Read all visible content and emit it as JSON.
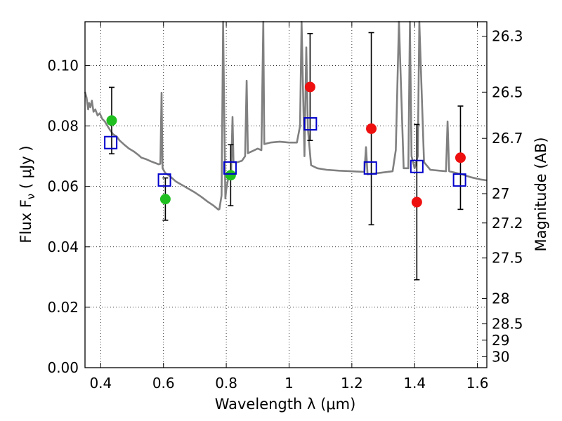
{
  "chart_data": {
    "type": "scatter",
    "xlabel": "Wavelength  λ (μm)",
    "ylabel": "Flux  F",
    "ylabel_sub": "ν",
    "ylabel_unit": "  ( μJy )",
    "y2label": "Magnitude (AB)",
    "xlim": [
      0.35,
      1.63
    ],
    "ylim": [
      0.0,
      0.1145
    ],
    "grid": true,
    "x_ticks": [
      0.4,
      0.6,
      0.8,
      1.0,
      1.2,
      1.4,
      1.6
    ],
    "x_tick_labels": [
      "0.4",
      "0.6",
      "0.8",
      "1",
      "1.2",
      "1.4",
      "1.6"
    ],
    "y_ticks": [
      0.0,
      0.02,
      0.04,
      0.06,
      0.08,
      0.1
    ],
    "y_tick_labels": [
      "0.00",
      "0.02",
      "0.04",
      "0.06",
      "0.08",
      "0.10"
    ],
    "mag_ticks": [
      {
        "label": "26.3",
        "flux": 0.1097
      },
      {
        "label": "26.5",
        "flux": 0.0912
      },
      {
        "label": "26.7",
        "flux": 0.0759
      },
      {
        "label": "27",
        "flux": 0.0576
      },
      {
        "label": "27.2",
        "flux": 0.0479
      },
      {
        "label": "27.5",
        "flux": 0.0363
      },
      {
        "label": "28",
        "flux": 0.0229
      },
      {
        "label": "28.5",
        "flux": 0.0145
      },
      {
        "label": "29",
        "flux": 0.0091
      },
      {
        "label": "30",
        "flux": 0.0036
      }
    ],
    "colors": {
      "sed": "#808080",
      "green": "#1fbf1f",
      "red": "#ee0f0f",
      "model": "#0000cc",
      "error": "#000000",
      "grid": "#000000"
    },
    "series": [
      {
        "marker": "circle",
        "color": "#1fbf1f",
        "points": [
          {
            "x": 0.435,
            "y": 0.0818,
            "yerr": 0.011
          },
          {
            "x": 0.606,
            "y": 0.0558,
            "yerr": 0.007
          },
          {
            "x": 0.814,
            "y": 0.0637,
            "yerr": 0.0101
          }
        ]
      },
      {
        "marker": "circle",
        "color": "#ee0f0f",
        "points": [
          {
            "x": 1.067,
            "y": 0.0929,
            "yerr": 0.0177
          },
          {
            "x": 1.262,
            "y": 0.0791,
            "yerr": 0.0318
          },
          {
            "x": 1.407,
            "y": 0.0548,
            "yerr": 0.0257
          },
          {
            "x": 1.546,
            "y": 0.0695,
            "yerr": 0.0171
          }
        ]
      },
      {
        "marker": "square",
        "color": "#0000cc",
        "points": [
          {
            "x": 0.432,
            "y": 0.0745
          },
          {
            "x": 0.603,
            "y": 0.0621
          },
          {
            "x": 0.812,
            "y": 0.0661
          },
          {
            "x": 1.068,
            "y": 0.0807
          },
          {
            "x": 1.259,
            "y": 0.0661
          },
          {
            "x": 1.407,
            "y": 0.0666
          },
          {
            "x": 1.543,
            "y": 0.0621
          }
        ]
      }
    ],
    "sed_line": [
      [
        0.35,
        0.0913
      ],
      [
        0.355,
        0.0894
      ],
      [
        0.36,
        0.0855
      ],
      [
        0.363,
        0.0876
      ],
      [
        0.367,
        0.0862
      ],
      [
        0.372,
        0.0884
      ],
      [
        0.377,
        0.0847
      ],
      [
        0.383,
        0.0855
      ],
      [
        0.39,
        0.0835
      ],
      [
        0.397,
        0.0842
      ],
      [
        0.405,
        0.0823
      ],
      [
        0.413,
        0.0815
      ],
      [
        0.42,
        0.0803
      ],
      [
        0.43,
        0.0786
      ],
      [
        0.44,
        0.0772
      ],
      [
        0.45,
        0.0766
      ],
      [
        0.46,
        0.0752
      ],
      [
        0.475,
        0.0738
      ],
      [
        0.49,
        0.0725
      ],
      [
        0.505,
        0.0716
      ],
      [
        0.52,
        0.0704
      ],
      [
        0.53,
        0.0695
      ],
      [
        0.545,
        0.069
      ],
      [
        0.56,
        0.0683
      ],
      [
        0.575,
        0.0677
      ],
      [
        0.585,
        0.0673
      ],
      [
        0.59,
        0.0675
      ],
      [
        0.594,
        0.091
      ],
      [
        0.597,
        0.066
      ],
      [
        0.605,
        0.0645
      ],
      [
        0.62,
        0.0634
      ],
      [
        0.64,
        0.0616
      ],
      [
        0.66,
        0.0604
      ],
      [
        0.68,
        0.0592
      ],
      [
        0.7,
        0.058
      ],
      [
        0.72,
        0.0566
      ],
      [
        0.74,
        0.055
      ],
      [
        0.76,
        0.0536
      ],
      [
        0.775,
        0.0523
      ],
      [
        0.778,
        0.0525
      ],
      [
        0.785,
        0.057
      ],
      [
        0.79,
        0.1145
      ],
      [
        0.793,
        0.088
      ],
      [
        0.797,
        0.056
      ],
      [
        0.8,
        0.059
      ],
      [
        0.81,
        0.065
      ],
      [
        0.815,
        0.063
      ],
      [
        0.82,
        0.083
      ],
      [
        0.823,
        0.068
      ],
      [
        0.835,
        0.068
      ],
      [
        0.85,
        0.0685
      ],
      [
        0.86,
        0.07
      ],
      [
        0.865,
        0.095
      ],
      [
        0.869,
        0.071
      ],
      [
        0.88,
        0.0715
      ],
      [
        0.9,
        0.0725
      ],
      [
        0.912,
        0.072
      ],
      [
        0.918,
        0.1145
      ],
      [
        0.921,
        0.074
      ],
      [
        0.94,
        0.0745
      ],
      [
        0.97,
        0.0748
      ],
      [
        1.0,
        0.0745
      ],
      [
        1.025,
        0.0745
      ],
      [
        1.035,
        0.08
      ],
      [
        1.04,
        0.1145
      ],
      [
        1.049,
        0.07
      ],
      [
        1.055,
        0.106
      ],
      [
        1.06,
        0.079
      ],
      [
        1.07,
        0.067
      ],
      [
        1.09,
        0.066
      ],
      [
        1.12,
        0.0655
      ],
      [
        1.16,
        0.0652
      ],
      [
        1.2,
        0.065
      ],
      [
        1.24,
        0.0648
      ],
      [
        1.245,
        0.073
      ],
      [
        1.25,
        0.064
      ],
      [
        1.29,
        0.0645
      ],
      [
        1.33,
        0.065
      ],
      [
        1.34,
        0.072
      ],
      [
        1.35,
        0.1145
      ],
      [
        1.365,
        0.066
      ],
      [
        1.38,
        0.066
      ],
      [
        1.385,
        0.1145
      ],
      [
        1.39,
        0.07
      ],
      [
        1.4,
        0.066
      ],
      [
        1.41,
        0.07
      ],
      [
        1.415,
        0.1145
      ],
      [
        1.43,
        0.068
      ],
      [
        1.45,
        0.0655
      ],
      [
        1.48,
        0.0652
      ],
      [
        1.5,
        0.065
      ],
      [
        1.505,
        0.0815
      ],
      [
        1.51,
        0.065
      ],
      [
        1.55,
        0.064
      ],
      [
        1.58,
        0.063
      ],
      [
        1.61,
        0.0623
      ],
      [
        1.63,
        0.062
      ]
    ]
  }
}
